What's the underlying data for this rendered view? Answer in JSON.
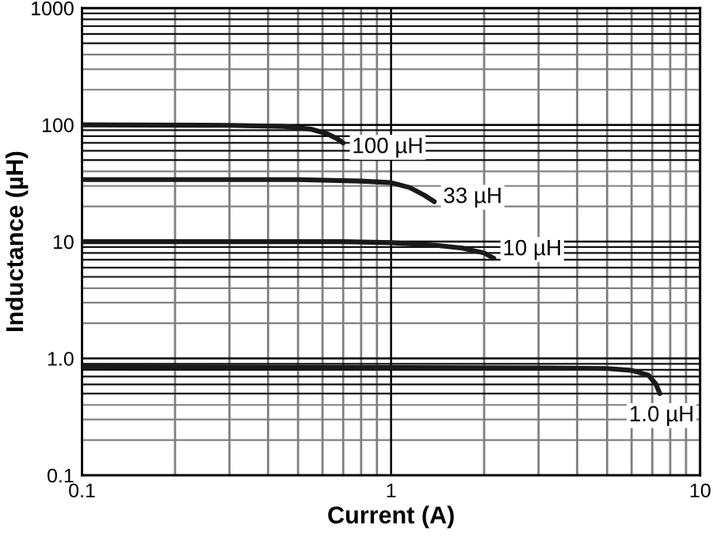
{
  "chart_data": {
    "type": "line",
    "xlabel": "Current (A)",
    "ylabel": "Inductance (µH)",
    "log": "xy",
    "grid": true,
    "xlim": [
      0.1,
      10
    ],
    "ylim": [
      0.1,
      1000
    ],
    "xticks": [
      0.1,
      1,
      10
    ],
    "yticks": [
      0.1,
      {
        "value": 1,
        "label": "1.0"
      },
      10,
      100,
      1000
    ],
    "series": [
      {
        "color": "#1a1a1a",
        "x": [
          0.1,
          0.3,
          0.45,
          0.55,
          0.62,
          0.67,
          0.7
        ],
        "values": [
          100,
          99,
          97,
          92,
          84,
          76,
          70
        ]
      },
      {
        "color": "#1a1a1a",
        "x": [
          0.1,
          0.5,
          0.8,
          1.0,
          1.15,
          1.28,
          1.38
        ],
        "values": [
          34,
          34,
          33,
          32,
          29,
          25,
          22
        ]
      },
      {
        "color": "#1a1a1a",
        "x": [
          0.1,
          0.7,
          1.0,
          1.4,
          1.7,
          2.0,
          2.15
        ],
        "values": [
          10,
          10,
          9.8,
          9.3,
          8.8,
          8,
          7.2
        ]
      },
      {
        "color": "#1a1a1a",
        "x": [
          0.1,
          3,
          5,
          6,
          6.8,
          7.2,
          7.4
        ],
        "values": [
          0.85,
          0.83,
          0.82,
          0.79,
          0.72,
          0.6,
          0.5
        ]
      }
    ],
    "annotations": [
      {
        "text": "100 µH",
        "x": 0.7,
        "y": 70
      },
      {
        "text": "33 µH",
        "x": 1.38,
        "y": 22
      },
      {
        "text": "10 µH",
        "x": 2.15,
        "y": 7.2
      },
      {
        "text": "1.0 µH",
        "x": 7.4,
        "y": 0.5
      }
    ]
  }
}
